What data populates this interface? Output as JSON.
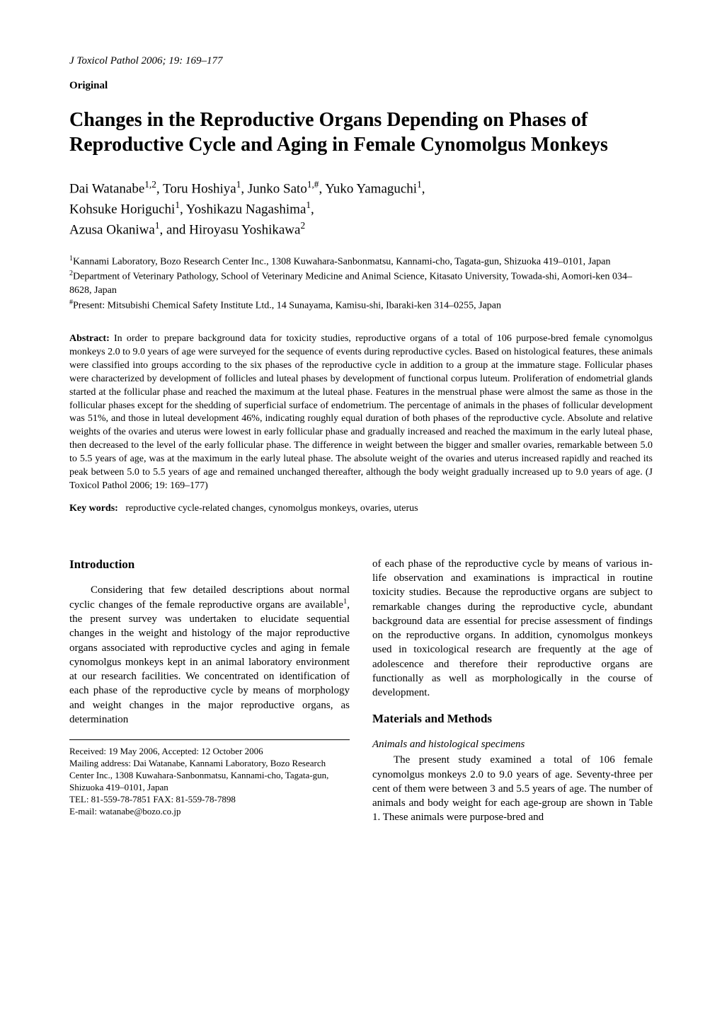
{
  "journal": {
    "ref": "J Toxicol Pathol 2006; 19: 169–177"
  },
  "articleType": "Original",
  "title": "Changes in the Reproductive Organs Depending on Phases of Reproductive Cycle and Aging in Female Cynomolgus Monkeys",
  "authors": {
    "line1_html": "Dai Watanabe<sup>1,2</sup>, Toru Hoshiya<sup>1</sup>, Junko Sato<sup>1,#</sup>, Yuko Yamaguchi<sup>1</sup>,",
    "line2_html": "Kohsuke Horiguchi<sup>1</sup>, Yoshikazu Nagashima<sup>1</sup>,",
    "line3_html": "Azusa Okaniwa<sup>1</sup>, and Hiroyasu Yoshikawa<sup>2</sup>"
  },
  "affiliations": {
    "a1_html": "<sup>1</sup>Kannami Laboratory, Bozo Research Center Inc., 1308 Kuwahara-Sanbonmatsu, Kannami-cho, Tagata-gun, Shizuoka 419–0101, Japan",
    "a2_html": "<sup>2</sup>Department of Veterinary Pathology, School of Veterinary Medicine and Animal Science, Kitasato University, Towada-shi, Aomori-ken 034–8628, Japan",
    "a3_html": "<sup>#</sup>Present: Mitsubishi Chemical Safety Institute Ltd., 14 Sunayama, Kamisu-shi, Ibaraki-ken 314–0255, Japan"
  },
  "abstract": {
    "label": "Abstract:",
    "text": "In order to prepare background data for toxicity studies, reproductive organs of a total of 106 purpose-bred female cynomolgus monkeys 2.0 to 9.0 years of age were surveyed for the sequence of events during reproductive cycles. Based on histological features, these animals were classified into groups according to the six phases of the reproductive cycle in addition to a group at the immature stage. Follicular phases were characterized by development of follicles and luteal phases by development of functional corpus luteum. Proliferation of endometrial glands started at the follicular phase and reached the maximum at the luteal phase. Features in the menstrual phase were almost the same as those in the follicular phases except for the shedding of superficial surface of endometrium. The percentage of animals in the phases of follicular development was 51%, and those in luteal development 46%, indicating roughly equal duration of both phases of the reproductive cycle. Absolute and relative weights of the ovaries and uterus were lowest in early follicular phase and gradually increased and reached the maximum in the early luteal phase, then decreased to the level of the early follicular phase. The difference in weight between the bigger and smaller ovaries, remarkable between 5.0 to 5.5 years of age, was at the maximum in the early luteal phase. The absolute weight of the ovaries and uterus increased rapidly and reached its peak between 5.0 to 5.5 years of age and remained unchanged thereafter, although the body weight gradually increased up to 9.0 years of age.  (J Toxicol Pathol 2006; 19: 169–177)"
  },
  "keywords": {
    "label": "Key words:",
    "text": "reproductive cycle-related changes, cynomolgus monkeys, ovaries, uterus"
  },
  "leftCol": {
    "introHeading": "Introduction",
    "introPara_html": "Considering that few detailed descriptions about normal cyclic changes of the female reproductive organs are available<sup>1</sup>, the present survey was undertaken to elucidate sequential changes in the weight and histology of the major reproductive organs associated with reproductive cycles and aging in female cynomolgus monkeys kept in an animal laboratory environment at our research facilities. We concentrated on identification of each phase of the reproductive cycle by means of morphology and weight changes in the major reproductive organs, as determination",
    "footer": {
      "received": "Received: 19 May 2006, Accepted: 12 October 2006",
      "mailing": "Mailing address: Dai Watanabe, Kannami Laboratory, Bozo Research Center Inc., 1308 Kuwahara-Sanbonmatsu, Kannami-cho, Tagata-gun, Shizuoka 419–0101, Japan",
      "tel": "TEL: 81-559-78-7851  FAX: 81-559-78-7898",
      "email": "E-mail: watanabe@bozo.co.jp"
    }
  },
  "rightCol": {
    "continuation": "of each phase of the reproductive cycle by means of various in-life observation and examinations is impractical in routine toxicity studies. Because the reproductive organs are subject to remarkable changes during the reproductive cycle, abundant background data are essential for precise assessment of findings on the reproductive organs. In addition, cynomolgus monkeys used in toxicological research are frequently at the age of adolescence and therefore their reproductive organs are functionally as well as morphologically in the course of development.",
    "mmHeading": "Materials and Methods",
    "subHeading": "Animals and histological specimens",
    "mmPara": "The present study examined a total of 106 female cynomolgus monkeys 2.0 to 9.0 years of age. Seventy-three per cent of them were between 3 and 5.5 years of age. The number of animals and body weight for each age-group are shown in Table 1. These animals were purpose-bred and"
  }
}
